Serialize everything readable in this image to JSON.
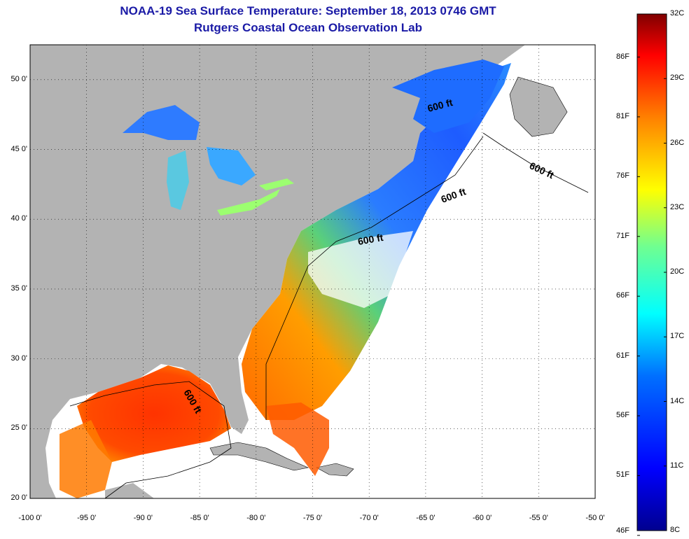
{
  "title_line1": "NOAA-19 Sea Surface Temperature:  September 18, 2013 0746 GMT",
  "title_line2": "Rutgers Coastal Ocean Observation Lab",
  "y_ticks": [
    "50 0'",
    "45 0'",
    "40 0'",
    "35 0'",
    "30 0'",
    "25 0'",
    "20 0'"
  ],
  "y_tick_values": [
    50,
    45,
    40,
    35,
    30,
    25,
    20
  ],
  "x_ticks": [
    "-100 0'",
    "-95 0'",
    "-90 0'",
    "-85 0'",
    "-80 0'",
    "-75 0'",
    "-70 0'",
    "-65 0'",
    "-60 0'",
    "-55 0'",
    "-50 0'"
  ],
  "x_tick_values": [
    -100,
    -95,
    -90,
    -85,
    -80,
    -75,
    -70,
    -65,
    -60,
    -55,
    -50
  ],
  "lat_range": [
    20,
    52.5
  ],
  "lon_range": [
    -100,
    -50
  ],
  "contour_labels": [
    "600 ft",
    "600 ft",
    "600 ft",
    "600 ft",
    "600 ft"
  ],
  "colorbar": {
    "celsius": [
      "32C",
      "29C",
      "26C",
      "23C",
      "20C",
      "17C",
      "14C",
      "11C",
      "8C"
    ],
    "celsius_values": [
      32,
      29,
      26,
      23,
      20,
      17,
      14,
      11,
      8
    ],
    "fahrenheit": [
      "86F",
      "81F",
      "76F",
      "71F",
      "66F",
      "61F",
      "56F",
      "51F",
      "46F"
    ],
    "fahrenheit_values": [
      86,
      81,
      76,
      71,
      66,
      61,
      56,
      51,
      46
    ],
    "range_c": [
      8,
      32
    ],
    "colors": [
      "#00008f",
      "#0000ff",
      "#0080ff",
      "#00ffff",
      "#80ff80",
      "#ffff00",
      "#ff8000",
      "#ff0000",
      "#800000"
    ]
  },
  "colors": {
    "land": "#b3b3b3",
    "no_data": "#ffffff",
    "title": "#1a1aa6"
  }
}
